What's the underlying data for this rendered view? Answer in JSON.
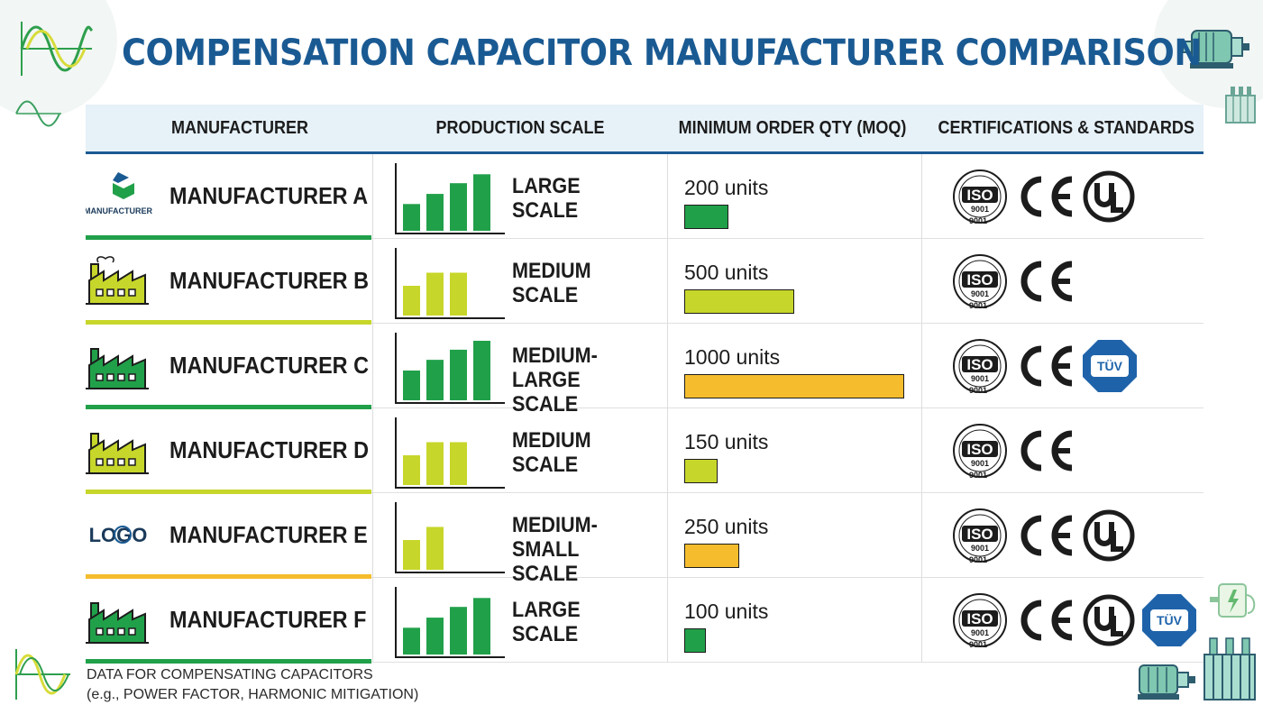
{
  "title": "COMPENSATION CAPACITOR MANUFACTURER COMPARISON",
  "headers": {
    "manufacturer": "MANUFACTURER",
    "scale": "PRODUCTION SCALE",
    "moq": "MINIMUM ORDER QTY (MOQ)",
    "certs": "CERTIFICATIONS & STANDARDS"
  },
  "colors": {
    "title": "#1a5a93",
    "header_bg": "#e6f1f8",
    "large": "#21a04a",
    "medium": "#c7d62a",
    "small": "#f5bd2e",
    "tuv": "#1e63aa"
  },
  "iso_text": {
    "top": "ISO",
    "mid": "9001",
    "bottom": "9001"
  },
  "rows": [
    {
      "name": "MANUFACTURER A",
      "logo": "manufacturer-logo",
      "logo_text": "MANUFACTURER",
      "scale_line1": "LARGE",
      "scale_line2": "SCALE",
      "bars": [
        0.45,
        0.62,
        0.8,
        0.95
      ],
      "scale_color": "#21a04a",
      "moq_value": 200,
      "moq_text": "200 units",
      "moq_color": "#21a04a",
      "accent": "#21a04a",
      "certs": [
        "iso-9001",
        "ce",
        "ul"
      ]
    },
    {
      "name": "MANUFACTURER B",
      "logo": "factory-icon",
      "scale_line1": "MEDIUM",
      "scale_line2": "SCALE",
      "bars": [
        0.5,
        0.72,
        0.72
      ],
      "scale_color": "#c7d62a",
      "moq_value": 500,
      "moq_text": "500 units",
      "moq_color": "#c7d62a",
      "accent": "#c7d62a",
      "certs": [
        "iso-9001",
        "ce"
      ]
    },
    {
      "name": "MANUFACTURER C",
      "logo": "factory-icon",
      "scale_line1": "MEDIUM-LARGE",
      "scale_line2": "SCALE",
      "bars": [
        0.5,
        0.68,
        0.85,
        1.0
      ],
      "scale_color": "#21a04a",
      "moq_value": 1000,
      "moq_text": "1000 units",
      "moq_color": "#f5bd2e",
      "accent": "#21a04a",
      "certs": [
        "iso-9001",
        "ce",
        "tuv"
      ],
      "tuv_text": "TÜV"
    },
    {
      "name": "MANUFACTURER D",
      "logo": "factory-icon",
      "scale_line1": "MEDIUM",
      "scale_line2": "SCALE",
      "bars": [
        0.5,
        0.72,
        0.72
      ],
      "scale_color": "#c7d62a",
      "moq_value": 150,
      "moq_text": "150 units",
      "moq_color": "#c7d62a",
      "accent": "#c7d62a",
      "certs": [
        "iso-9001",
        "ce"
      ]
    },
    {
      "name": "MANUFACTURER E",
      "logo": "logo-wordmark",
      "logo_text": "LOGO",
      "scale_line1": "MEDIUM-SMALL",
      "scale_line2": "SCALE",
      "bars": [
        0.5,
        0.72
      ],
      "scale_color": "#c7d62a",
      "moq_value": 250,
      "moq_text": "250 units",
      "moq_color": "#f5bd2e",
      "accent": "#f5bd2e",
      "certs": [
        "iso-9001",
        "ce",
        "ul"
      ]
    },
    {
      "name": "MANUFACTURER F",
      "logo": "factory-icon",
      "scale_line1": "LARGE",
      "scale_line2": "SCALE",
      "bars": [
        0.45,
        0.62,
        0.8,
        0.95
      ],
      "scale_color": "#21a04a",
      "moq_value": 100,
      "moq_text": "100 units",
      "moq_color": "#21a04a",
      "accent": "#21a04a",
      "certs": [
        "iso-9001",
        "ce",
        "ul",
        "tuv"
      ],
      "tuv_text": "TÜV"
    }
  ],
  "chart_data": {
    "type": "table",
    "title": "COMPENSATION CAPACITOR MANUFACTURER COMPARISON",
    "columns": [
      "MANUFACTURER",
      "PRODUCTION SCALE",
      "MINIMUM ORDER QTY (MOQ)",
      "CERTIFICATIONS & STANDARDS"
    ],
    "categories": [
      "MANUFACTURER A",
      "MANUFACTURER B",
      "MANUFACTURER C",
      "MANUFACTURER D",
      "MANUFACTURER E",
      "MANUFACTURER F"
    ],
    "production_scale": [
      "LARGE SCALE",
      "MEDIUM SCALE",
      "MEDIUM-LARGE SCALE",
      "MEDIUM SCALE",
      "MEDIUM-SMALL SCALE",
      "LARGE SCALE"
    ],
    "series": [
      {
        "name": "MINIMUM ORDER QTY (MOQ)",
        "values": [
          200,
          500,
          1000,
          150,
          250,
          100
        ]
      }
    ],
    "units": "units",
    "certifications": [
      [
        "ISO 9001",
        "CE",
        "UL"
      ],
      [
        "ISO 9001",
        "CE"
      ],
      [
        "ISO 9001",
        "CE",
        "TÜV"
      ],
      [
        "ISO 9001",
        "CE"
      ],
      [
        "ISO 9001",
        "CE",
        "UL"
      ],
      [
        "ISO 9001",
        "CE",
        "UL",
        "TÜV"
      ]
    ]
  },
  "footnote": {
    "line1": "DATA FOR COMPENSATING CAPACITORS",
    "line2": "(e.g., POWER FACTOR, HARMONIC MITIGATION)"
  }
}
